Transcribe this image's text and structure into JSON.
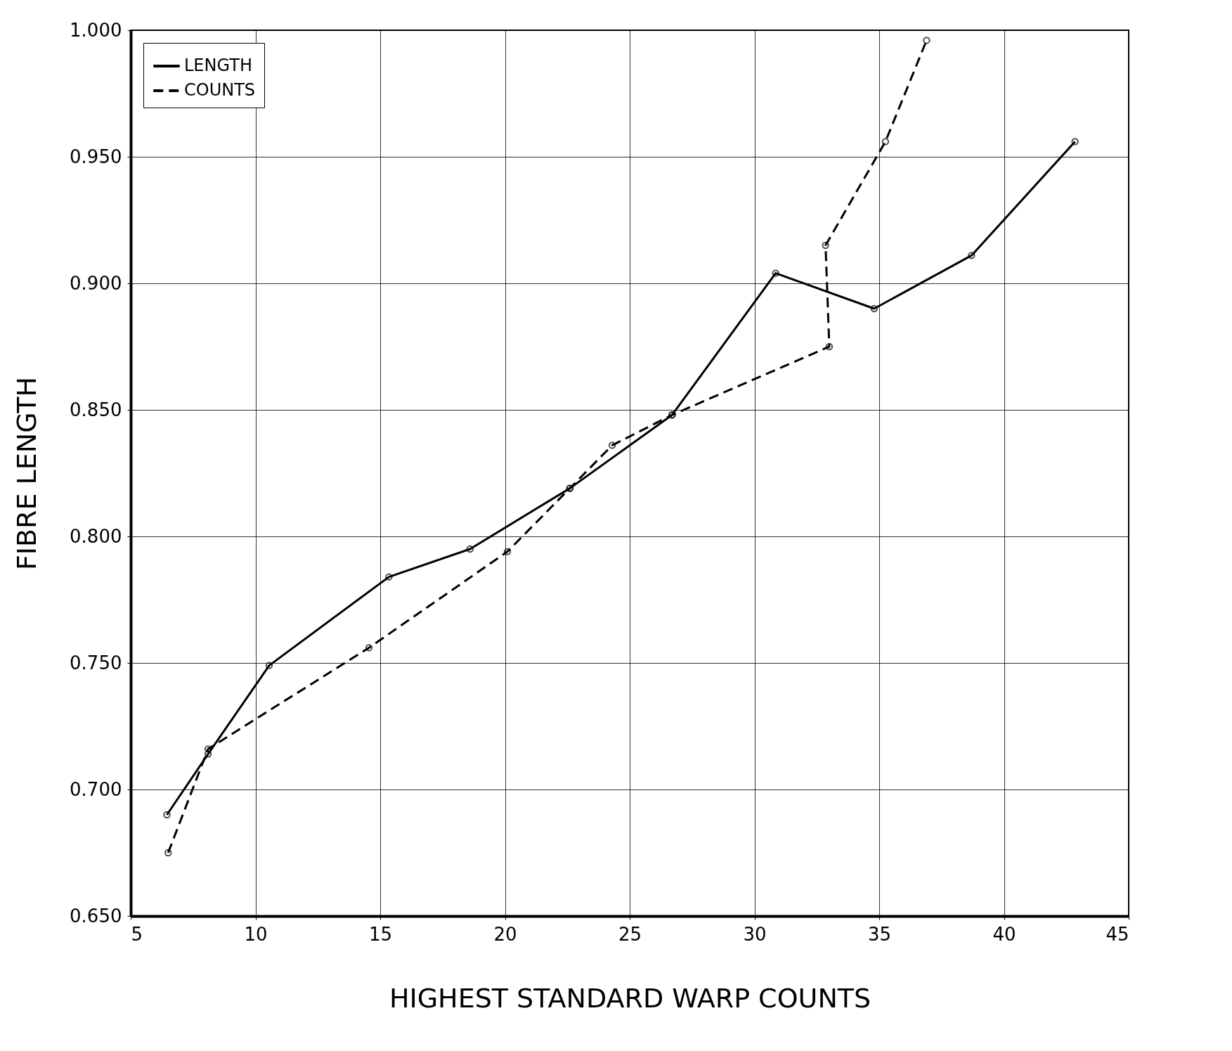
{
  "chart_data": {
    "type": "line",
    "xlabel": "HIGHEST  STANDARD  WARP  COUNTS",
    "ylabel": "FIBRE  LENGTH",
    "xlim": [
      5,
      45
    ],
    "xticks": [
      5,
      10,
      15,
      20,
      25,
      30,
      35,
      40,
      45
    ],
    "ylim": [
      0.65,
      1.0
    ],
    "yticks": [
      {
        "value": 0.65,
        "label": "0.650"
      },
      {
        "value": 0.7,
        "label": "0.700"
      },
      {
        "value": 0.75,
        "label": "0.750"
      },
      {
        "value": 0.8,
        "label": "0.800"
      },
      {
        "value": 0.85,
        "label": "0.850"
      },
      {
        "value": 0.9,
        "label": "0.900"
      },
      {
        "value": 0.95,
        "label": "0.950"
      },
      {
        "value": 1.0,
        "label": "1.000"
      }
    ],
    "grid": true,
    "legend": "top left",
    "marker": "circle",
    "series": [
      {
        "name": "LENGTH",
        "color": "#000000",
        "line_style": "solid",
        "x": [
          6.45,
          8.1,
          10.55,
          15.35,
          18.6,
          22.6,
          26.7,
          30.85,
          34.8,
          38.7,
          42.85
        ],
        "values": [
          0.69,
          0.714,
          0.749,
          0.784,
          0.795,
          0.819,
          0.848,
          0.904,
          0.89,
          0.911,
          0.956
        ]
      },
      {
        "name": "COUNTS",
        "color": "#000000",
        "line_style": "dashed",
        "x": [
          6.5,
          8.1,
          14.55,
          20.1,
          22.6,
          24.3,
          26.7,
          33.0,
          32.85,
          35.25,
          36.9
        ],
        "values": [
          0.675,
          0.716,
          0.756,
          0.794,
          0.819,
          0.836,
          0.848,
          0.875,
          0.915,
          0.956,
          0.996
        ]
      }
    ]
  }
}
